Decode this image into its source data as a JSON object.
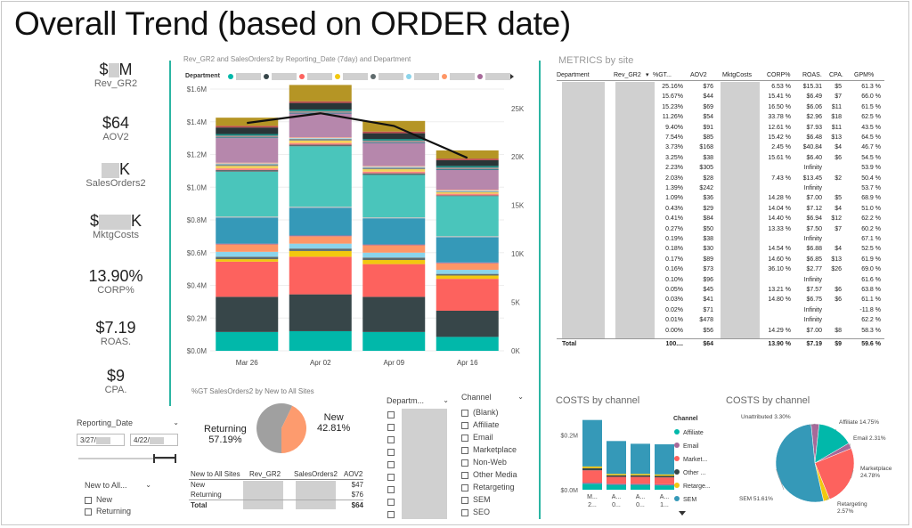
{
  "title": "Overall Trend (based on ORDER date)",
  "kpis": [
    {
      "value_prefix": "$",
      "value_suffix": "M",
      "label": "Rev_GR2",
      "redacted": true
    },
    {
      "value": "$64",
      "label": "AOV2"
    },
    {
      "value_prefix": "",
      "value_suffix": "K",
      "label": "SalesOrders2",
      "redacted": true
    },
    {
      "value_prefix": "$",
      "value_suffix": "K",
      "label": "MktgCosts",
      "redacted": true
    },
    {
      "value": "13.90%",
      "label": "CORP%"
    },
    {
      "value": "$7.19",
      "label": "ROAS."
    },
    {
      "value": "$9",
      "label": "CPA."
    }
  ],
  "slicer_date": {
    "label": "Reporting_Date",
    "from": "3/27/",
    "to": "4/22/"
  },
  "slicer_new": {
    "label": "New to All...",
    "options": [
      "New",
      "Returning"
    ]
  },
  "main_chart": {
    "title": "Rev_GR2 and SalesOrders2 by Reporting_Date (7day) and Department",
    "legend_label": "Department",
    "dates": [
      "Mar 26",
      "Apr 02",
      "Apr 09",
      "Apr 16"
    ],
    "left_ticks": [
      "$1.6M",
      "$1.4M",
      "$1.2M",
      "$1.0M",
      "$0.8M",
      "$0.6M",
      "$0.4M",
      "$0.2M",
      "$0.0M"
    ],
    "right_ticks": [
      "25K",
      "20K",
      "15K",
      "10K",
      "5K",
      "0K"
    ],
    "chart_data": {
      "type": "bar",
      "categories": [
        "Mar 26",
        "Apr 02",
        "Apr 09",
        "Apr 16"
      ],
      "ylim": [
        0,
        1.6
      ],
      "y2lim": [
        0,
        27
      ],
      "line_values": [
        23.5,
        24.5,
        23.2,
        19.9
      ],
      "segment_colors": [
        "#01b8aa",
        "#374649",
        "#fd625e",
        "#f2c80f",
        "#5f6b6d",
        "#8ad4eb",
        "#fe9666",
        "#a66999",
        "#3599b8",
        "#dfbfbf",
        "#4ac5bb",
        "#5f6b6d",
        "#fb8281",
        "#f4d25a",
        "#7f898a",
        "#a4ddee",
        "#fdab89",
        "#b687ac",
        "#28738a",
        "#a78f8f",
        "#168980",
        "#293537",
        "#bb4a4a",
        "#b59525"
      ],
      "stacks": [
        [
          0.115,
          0.215,
          0.215,
          0.015,
          0.015,
          0.03,
          0.045,
          0.005,
          0.16,
          0.005,
          0.275,
          0.01,
          0.01,
          0.015,
          0.01,
          0.005,
          0.005,
          0.15,
          0.005,
          0.01,
          0.01,
          0.04,
          0.01,
          0.05
        ],
        [
          0.12,
          0.225,
          0.23,
          0.035,
          0.015,
          0.03,
          0.045,
          0.005,
          0.17,
          0.005,
          0.37,
          0.01,
          0.01,
          0.015,
          0.01,
          0.005,
          0.005,
          0.145,
          0.005,
          0.01,
          0.01,
          0.04,
          0.01,
          0.1
        ],
        [
          0.115,
          0.215,
          0.2,
          0.025,
          0.015,
          0.03,
          0.045,
          0.005,
          0.16,
          0.005,
          0.26,
          0.01,
          0.01,
          0.015,
          0.01,
          0.005,
          0.005,
          0.14,
          0.005,
          0.01,
          0.01,
          0.035,
          0.01,
          0.065
        ],
        [
          0.085,
          0.16,
          0.195,
          0.02,
          0.01,
          0.025,
          0.04,
          0.005,
          0.155,
          0.005,
          0.245,
          0.005,
          0.01,
          0.01,
          0.005,
          0.005,
          0.005,
          0.12,
          0.005,
          0.01,
          0.01,
          0.035,
          0.01,
          0.05
        ]
      ]
    }
  },
  "pie_new": {
    "title": "%GT SalesOrders2 by New to All Sites",
    "returning_label": "Returning",
    "returning_pct": "57.19%",
    "new_label": "New",
    "new_pct": "42.81%",
    "chart_data": {
      "type": "pie",
      "categories": [
        "Returning",
        "New"
      ],
      "values": [
        57.19,
        42.81
      ],
      "colors": [
        "#a0a0a0",
        "#fd9b6e"
      ]
    }
  },
  "small_table": {
    "headers": [
      "New to All Sites",
      "Rev_GR2",
      "SalesOrders2",
      "AOV2"
    ],
    "rows": [
      {
        "name": "New",
        "aov": "$47"
      },
      {
        "name": "Returning",
        "aov": "$76"
      },
      {
        "name": "Total",
        "aov": "$64"
      }
    ]
  },
  "slicer_dept": {
    "label": "Departm..."
  },
  "slicer_channel": {
    "label": "Channel",
    "options": [
      "(Blank)",
      "Affiliate",
      "Email",
      "Marketplace",
      "Non-Web",
      "Other Media",
      "Retargeting",
      "SEM",
      "SEO"
    ]
  },
  "metrics": {
    "title": "METRICS by site",
    "headers": [
      "Department",
      "Rev_GR2",
      "%GT...",
      "AOV2",
      "MktgCosts",
      "CORP%",
      "ROAS.",
      "CPA.",
      "GPM%"
    ],
    "rows": [
      [
        "25.16%",
        "$76",
        "6.53 %",
        "$15.31",
        "$5",
        "61.3 %"
      ],
      [
        "15.67%",
        "$44",
        "15.41 %",
        "$6.49",
        "$7",
        "66.0 %"
      ],
      [
        "15.23%",
        "$69",
        "16.50 %",
        "$6.06",
        "$11",
        "61.5 %"
      ],
      [
        "11.26%",
        "$54",
        "33.78 %",
        "$2.96",
        "$18",
        "62.5 %"
      ],
      [
        "9.40%",
        "$91",
        "12.61 %",
        "$7.93",
        "$11",
        "43.5 %"
      ],
      [
        "7.54%",
        "$85",
        "15.42 %",
        "$6.48",
        "$13",
        "64.5 %"
      ],
      [
        "3.73%",
        "$168",
        "2.45 %",
        "$40.84",
        "$4",
        "46.7 %"
      ],
      [
        "3.25%",
        "$38",
        "15.61 %",
        "$6.40",
        "$6",
        "54.5 %"
      ],
      [
        "2.23%",
        "$305",
        "",
        "Infinity",
        "",
        "53.9 %"
      ],
      [
        "2.03%",
        "$28",
        "7.43 %",
        "$13.45",
        "$2",
        "50.4 %"
      ],
      [
        "1.39%",
        "$242",
        "",
        "Infinity",
        "",
        "53.7 %"
      ],
      [
        "1.09%",
        "$36",
        "14.28 %",
        "$7.00",
        "$5",
        "68.9 %"
      ],
      [
        "0.43%",
        "$29",
        "14.04 %",
        "$7.12",
        "$4",
        "51.0 %"
      ],
      [
        "0.41%",
        "$84",
        "14.40 %",
        "$6.94",
        "$12",
        "62.2 %"
      ],
      [
        "0.27%",
        "$50",
        "13.33 %",
        "$7.50",
        "$7",
        "60.2 %"
      ],
      [
        "0.19%",
        "$38",
        "",
        "Infinity",
        "",
        "67.1 %"
      ],
      [
        "0.18%",
        "$30",
        "14.54 %",
        "$6.88",
        "$4",
        "52.5 %"
      ],
      [
        "0.17%",
        "$89",
        "14.60 %",
        "$6.85",
        "$13",
        "61.9 %"
      ],
      [
        "0.16%",
        "$73",
        "36.10 %",
        "$2.77",
        "$26",
        "69.0 %"
      ],
      [
        "0.10%",
        "$96",
        "",
        "Infinity",
        "",
        "61.6 %"
      ],
      [
        "0.05%",
        "$45",
        "13.21 %",
        "$7.57",
        "$6",
        "63.8 %"
      ],
      [
        "0.03%",
        "$41",
        "14.80 %",
        "$6.75",
        "$6",
        "61.1 %"
      ],
      [
        "0.02%",
        "$71",
        "",
        "Infinity",
        "",
        "-11.8 %"
      ],
      [
        "0.01%",
        "$478",
        "",
        "Infinity",
        "",
        "62.2 %"
      ],
      [
        "0.00%",
        "$56",
        "14.29 %",
        "$7.00",
        "$8",
        "58.3 %"
      ]
    ],
    "total": [
      "Total",
      "100....",
      "$64",
      "13.90 %",
      "$7.19",
      "$9",
      "59.6 %"
    ]
  },
  "costs_bar": {
    "title": "COSTS by channel",
    "legend_title": "Channel",
    "legend": [
      "Affiliate",
      "Email",
      "Market...",
      "Other ...",
      "Retarge...",
      "SEM"
    ],
    "ticks": [
      "$0.2M",
      "$0.0M"
    ],
    "xlabels": [
      "M... 2...",
      "A... 0...",
      "A... 0...",
      "A... 1..."
    ],
    "chart_data": {
      "type": "bar",
      "categories": [
        "M... 2...",
        "A... 0...",
        "A... 0...",
        "A... 1..."
      ],
      "series": [
        {
          "name": "Affiliate",
          "values": [
            0.022,
            0.018,
            0.018,
            0.016
          ],
          "color": "#01b8aa"
        },
        {
          "name": "Email",
          "values": [
            0.004,
            0.004,
            0.004,
            0.004
          ],
          "color": "#a66999"
        },
        {
          "name": "Market...",
          "values": [
            0.045,
            0.025,
            0.025,
            0.025
          ],
          "color": "#fd625e"
        },
        {
          "name": "Other ...",
          "values": [
            0.008,
            0.006,
            0.006,
            0.006
          ],
          "color": "#374649"
        },
        {
          "name": "Retarge...",
          "values": [
            0.006,
            0.005,
            0.005,
            0.005
          ],
          "color": "#f2c80f"
        },
        {
          "name": "SEM",
          "values": [
            0.17,
            0.12,
            0.11,
            0.11
          ],
          "color": "#3599b8"
        }
      ],
      "ylim": [
        0,
        0.28
      ]
    }
  },
  "costs_pie": {
    "title": "COSTS by channel",
    "chart_data": {
      "type": "pie",
      "categories": [
        "Affiliate",
        "Email",
        "Marketplace",
        "Retargeting",
        "SEM",
        "Unattributed"
      ],
      "values": [
        14.75,
        2.31,
        24.78,
        2.57,
        51.61,
        3.3
      ],
      "colors": [
        "#01b8aa",
        "#a66999",
        "#fd625e",
        "#f2c80f",
        "#3599b8",
        "#a66999"
      ],
      "labels": [
        "Affiliate 14.75%",
        "Email 2.31%",
        "Marketplace 24.78%",
        "Retargeting 2.57%",
        "SEM 51.61%",
        "Unattributed 3.30%"
      ]
    }
  }
}
